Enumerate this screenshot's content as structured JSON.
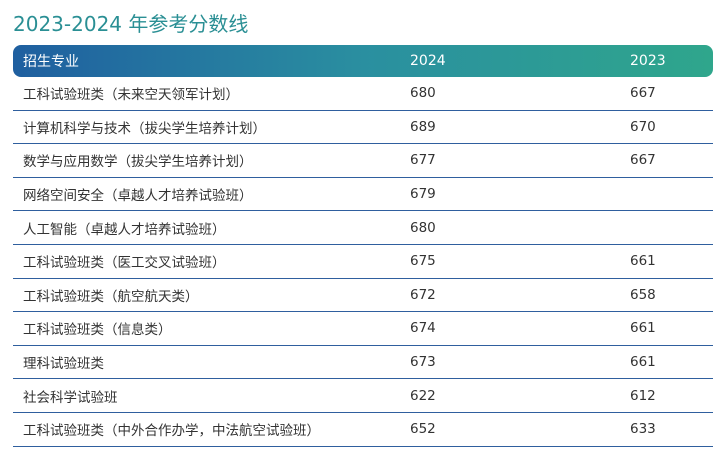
{
  "title": "2023-2024 年参考分数线",
  "table": {
    "headers": [
      "招生专业",
      "2024",
      "2023"
    ],
    "rows": [
      {
        "major": "工科试验班类（未来空天领军计划）",
        "y2024": "680",
        "y2023": "667"
      },
      {
        "major": "计算机科学与技术（拔尖学生培养计划）",
        "y2024": "689",
        "y2023": "670"
      },
      {
        "major": "数学与应用数学（拔尖学生培养计划）",
        "y2024": "677",
        "y2023": "667"
      },
      {
        "major": "网络空间安全（卓越人才培养试验班）",
        "y2024": "679",
        "y2023": ""
      },
      {
        "major": "人工智能（卓越人才培养试验班）",
        "y2024": "680",
        "y2023": ""
      },
      {
        "major": "工科试验班类（医工交叉试验班）",
        "y2024": "675",
        "y2023": "661"
      },
      {
        "major": "工科试验班类（航空航天类）",
        "y2024": "672",
        "y2023": "658"
      },
      {
        "major": "工科试验班类（信息类）",
        "y2024": "674",
        "y2023": "661"
      },
      {
        "major": "理科试验班类",
        "y2024": "673",
        "y2023": "661"
      },
      {
        "major": "社会科学试验班",
        "y2024": "622",
        "y2023": "612"
      },
      {
        "major": "工科试验班类（中外合作办学，中法航空试验班）",
        "y2024": "652",
        "y2023": "633"
      }
    ]
  },
  "colors": {
    "title": "#2a8f94",
    "header_gradient_start": "#1f5fa0",
    "header_gradient_end": "#2fa68c",
    "row_divider": "#2f5f9e",
    "text": "#333333"
  }
}
